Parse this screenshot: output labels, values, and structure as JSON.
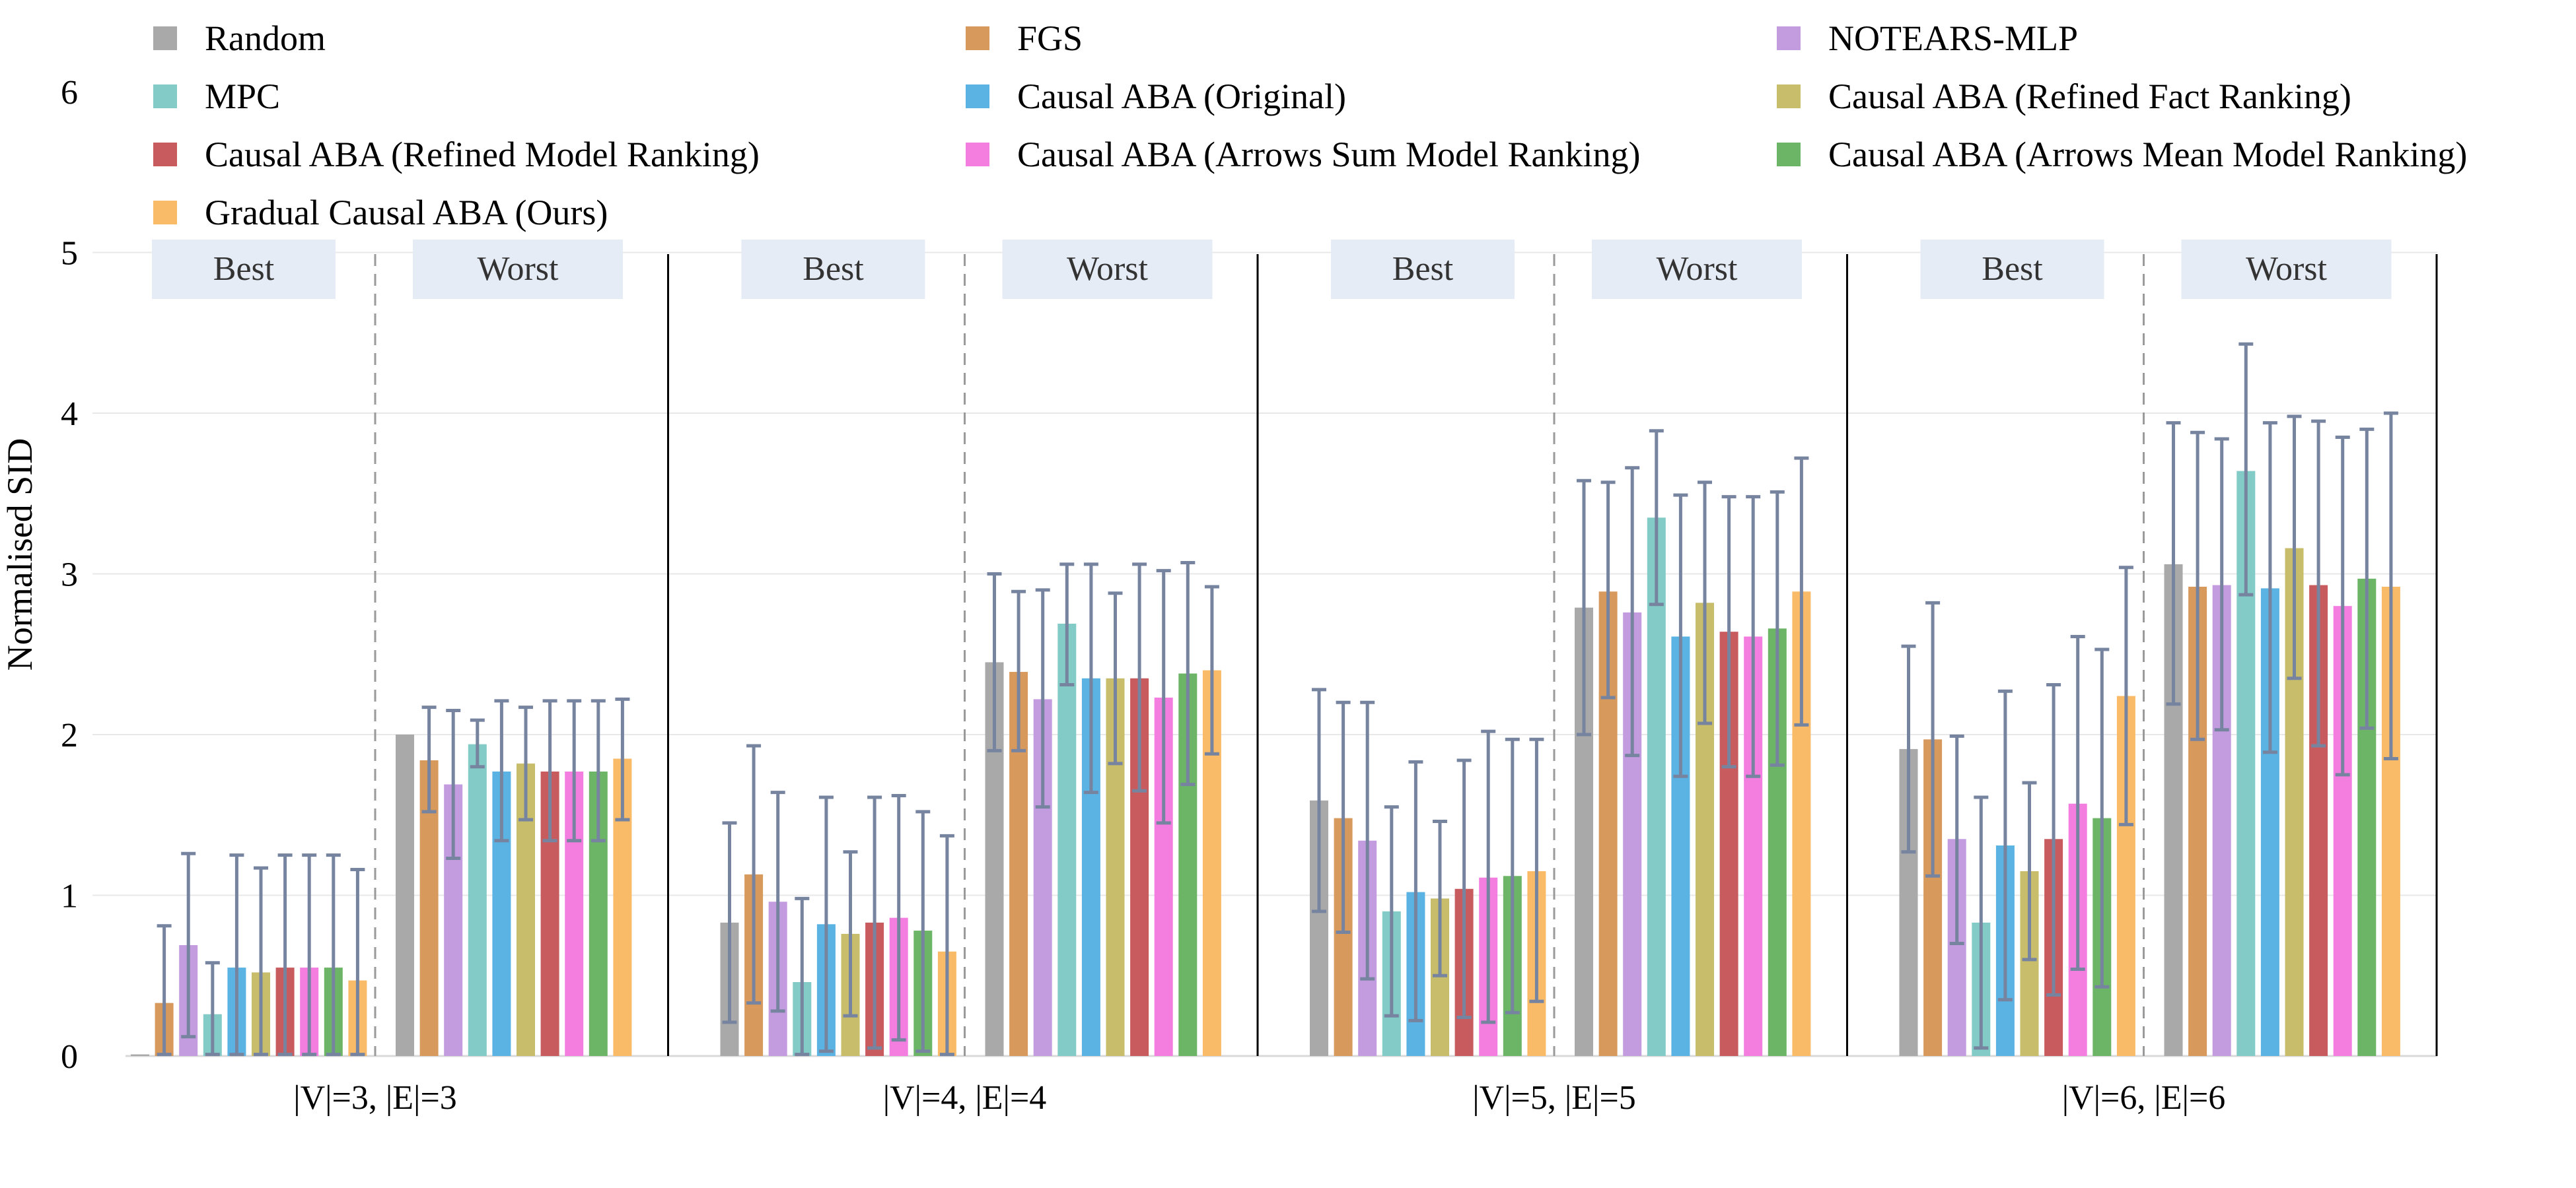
{
  "chart_data": {
    "type": "bar",
    "ylabel": "Normalised SID",
    "ylim": [
      0,
      5
    ],
    "yticks": [
      "0",
      "1",
      "2",
      "3",
      "4",
      "5",
      "6"
    ],
    "grid": true,
    "legend_position": "top",
    "groups": [
      "|V|=3, |E|=3",
      "|V|=4, |E|=4",
      "|V|=5, |E|=5",
      "|V|=6, |E|=6"
    ],
    "subgroups": [
      "Best",
      "Worst"
    ],
    "series": [
      {
        "name": "Random",
        "color": "#a9a9a9",
        "values": [
          [
            0.01,
            2.0
          ],
          [
            0.83,
            2.45
          ],
          [
            1.59,
            2.79
          ],
          [
            1.91,
            3.06
          ]
        ],
        "err_low": [
          [
            0.01,
            2.0
          ],
          [
            0.21,
            1.9
          ],
          [
            0.9,
            2.0
          ],
          [
            1.27,
            2.19
          ]
        ],
        "err_high": [
          [
            0.01,
            2.0
          ],
          [
            1.45,
            3.0
          ],
          [
            2.28,
            3.58
          ],
          [
            2.55,
            3.94
          ]
        ]
      },
      {
        "name": "FGS",
        "color": "#d8995c",
        "values": [
          [
            0.33,
            1.84
          ],
          [
            1.13,
            2.39
          ],
          [
            1.48,
            2.89
          ],
          [
            1.97,
            2.92
          ]
        ],
        "err_low": [
          [
            0.01,
            1.52
          ],
          [
            0.33,
            1.9
          ],
          [
            0.77,
            2.23
          ],
          [
            1.12,
            1.97
          ]
        ],
        "err_high": [
          [
            0.81,
            2.17
          ],
          [
            1.93,
            2.89
          ],
          [
            2.2,
            3.57
          ],
          [
            2.82,
            3.88
          ]
        ]
      },
      {
        "name": "NOTEARS-MLP",
        "color": "#c39bdf",
        "values": [
          [
            0.69,
            1.69
          ],
          [
            0.96,
            2.22
          ],
          [
            1.34,
            2.76
          ],
          [
            1.35,
            2.93
          ]
        ],
        "err_low": [
          [
            0.12,
            1.23
          ],
          [
            0.28,
            1.55
          ],
          [
            0.48,
            1.87
          ],
          [
            0.7,
            2.03
          ]
        ],
        "err_high": [
          [
            1.26,
            2.15
          ],
          [
            1.64,
            2.9
          ],
          [
            2.2,
            3.66
          ],
          [
            1.99,
            3.84
          ]
        ]
      },
      {
        "name": "MPC",
        "color": "#82cbc6",
        "values": [
          [
            0.26,
            1.94
          ],
          [
            0.46,
            2.69
          ],
          [
            0.9,
            3.35
          ],
          [
            0.83,
            3.64
          ]
        ],
        "err_low": [
          [
            0.01,
            1.8
          ],
          [
            0.01,
            2.31
          ],
          [
            0.25,
            2.81
          ],
          [
            0.05,
            2.87
          ]
        ],
        "err_high": [
          [
            0.58,
            2.09
          ],
          [
            0.98,
            3.06
          ],
          [
            1.55,
            3.89
          ],
          [
            1.61,
            4.43
          ]
        ]
      },
      {
        "name": "Causal ABA (Original)",
        "color": "#5ab3e2",
        "values": [
          [
            0.55,
            1.77
          ],
          [
            0.82,
            2.35
          ],
          [
            1.02,
            2.61
          ],
          [
            1.31,
            2.91
          ]
        ],
        "err_low": [
          [
            0.01,
            1.34
          ],
          [
            0.03,
            1.64
          ],
          [
            0.22,
            1.74
          ],
          [
            0.35,
            1.89
          ]
        ],
        "err_high": [
          [
            1.25,
            2.21
          ],
          [
            1.61,
            3.06
          ],
          [
            1.83,
            3.49
          ],
          [
            2.27,
            3.94
          ]
        ]
      },
      {
        "name": "Causal ABA (Refined Fact Ranking)",
        "color": "#c8bd6b",
        "values": [
          [
            0.52,
            1.82
          ],
          [
            0.76,
            2.35
          ],
          [
            0.98,
            2.82
          ],
          [
            1.15,
            3.16
          ]
        ],
        "err_low": [
          [
            0.01,
            1.47
          ],
          [
            0.25,
            1.82
          ],
          [
            0.5,
            2.07
          ],
          [
            0.6,
            2.35
          ]
        ],
        "err_high": [
          [
            1.17,
            2.17
          ],
          [
            1.27,
            2.88
          ],
          [
            1.46,
            3.57
          ],
          [
            1.7,
            3.98
          ]
        ]
      },
      {
        "name": "Causal ABA (Refined Model Ranking)",
        "color": "#c85b5e",
        "values": [
          [
            0.55,
            1.77
          ],
          [
            0.83,
            2.35
          ],
          [
            1.04,
            2.64
          ],
          [
            1.35,
            2.93
          ]
        ],
        "err_low": [
          [
            0.01,
            1.34
          ],
          [
            0.05,
            1.65
          ],
          [
            0.24,
            1.8
          ],
          [
            0.38,
            1.93
          ]
        ],
        "err_high": [
          [
            1.25,
            2.21
          ],
          [
            1.61,
            3.06
          ],
          [
            1.84,
            3.48
          ],
          [
            2.31,
            3.95
          ]
        ]
      },
      {
        "name": "Causal ABA (Arrows Sum Model Ranking)",
        "color": "#f47de0",
        "values": [
          [
            0.55,
            1.77
          ],
          [
            0.86,
            2.23
          ],
          [
            1.11,
            2.61
          ],
          [
            1.57,
            2.8
          ]
        ],
        "err_low": [
          [
            0.01,
            1.34
          ],
          [
            0.1,
            1.45
          ],
          [
            0.21,
            1.74
          ],
          [
            0.54,
            1.75
          ]
        ],
        "err_high": [
          [
            1.25,
            2.21
          ],
          [
            1.62,
            3.02
          ],
          [
            2.02,
            3.48
          ],
          [
            2.61,
            3.85
          ]
        ]
      },
      {
        "name": "Causal ABA (Arrows Mean Model Ranking)",
        "color": "#6cb567",
        "values": [
          [
            0.55,
            1.77
          ],
          [
            0.78,
            2.38
          ],
          [
            1.12,
            2.66
          ],
          [
            1.48,
            2.97
          ]
        ],
        "err_low": [
          [
            0.01,
            1.34
          ],
          [
            0.03,
            1.69
          ],
          [
            0.27,
            1.81
          ],
          [
            0.43,
            2.04
          ]
        ],
        "err_high": [
          [
            1.25,
            2.21
          ],
          [
            1.52,
            3.07
          ],
          [
            1.97,
            3.51
          ],
          [
            2.53,
            3.9
          ]
        ]
      },
      {
        "name": "Gradual Causal ABA (Ours)",
        "color": "#f9bb67",
        "values": [
          [
            0.47,
            1.85
          ],
          [
            0.65,
            2.4
          ],
          [
            1.15,
            2.89
          ],
          [
            2.24,
            2.92
          ]
        ],
        "err_low": [
          [
            0.01,
            1.47
          ],
          [
            0.01,
            1.88
          ],
          [
            0.34,
            2.06
          ],
          [
            1.44,
            1.85
          ]
        ],
        "err_high": [
          [
            1.16,
            2.22
          ],
          [
            1.37,
            2.92
          ],
          [
            1.97,
            3.72
          ],
          [
            3.04,
            4.0
          ]
        ]
      }
    ]
  }
}
